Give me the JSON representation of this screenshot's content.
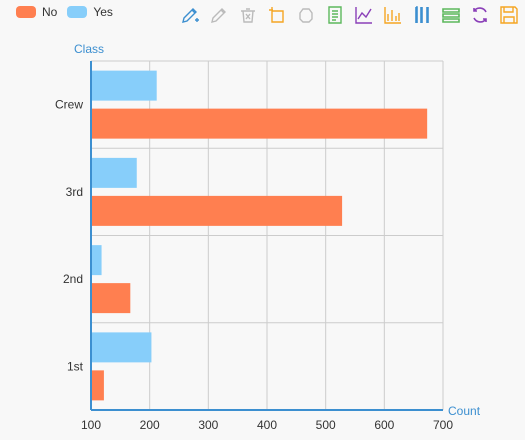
{
  "legend": [
    {
      "label": "No",
      "color": "#ff7f50"
    },
    {
      "label": "Yes",
      "color": "#87cefa"
    }
  ],
  "toolbar": [
    {
      "name": "mark-icon",
      "color": "#3c8fd0"
    },
    {
      "name": "mark-undo-icon",
      "color": "#bbbbbb"
    },
    {
      "name": "mark-clear-icon",
      "color": "#bbbbbb"
    },
    {
      "name": "data-zoom-icon",
      "color": "#f5a623"
    },
    {
      "name": "data-zoom-reset-icon",
      "color": "#bbbbbb"
    },
    {
      "name": "data-view-icon",
      "color": "#5cb85c"
    },
    {
      "name": "line-chart-icon",
      "color": "#8a3fb8"
    },
    {
      "name": "bar-chart-icon",
      "color": "#f5a623"
    },
    {
      "name": "stack-icon",
      "color": "#3c8fd0"
    },
    {
      "name": "tiled-icon",
      "color": "#5cb85c"
    },
    {
      "name": "restore-icon",
      "color": "#8a3fb8"
    },
    {
      "name": "save-image-icon",
      "color": "#f5a623"
    }
  ],
  "chart_data": {
    "type": "bar",
    "orientation": "horizontal",
    "categories": [
      "1st",
      "2nd",
      "3rd",
      "Crew"
    ],
    "series": [
      {
        "name": "No",
        "color": "#ff7f50",
        "values": [
          122,
          167,
          528,
          673
        ]
      },
      {
        "name": "Yes",
        "color": "#87cefa",
        "values": [
          203,
          118,
          178,
          212
        ]
      }
    ],
    "xlabel": "Count",
    "ylabel": "Class",
    "xlim": [
      100,
      700
    ],
    "xticks": [
      100,
      200,
      300,
      400,
      500,
      600,
      700
    ],
    "grid": true,
    "legend_position": "top-left"
  }
}
